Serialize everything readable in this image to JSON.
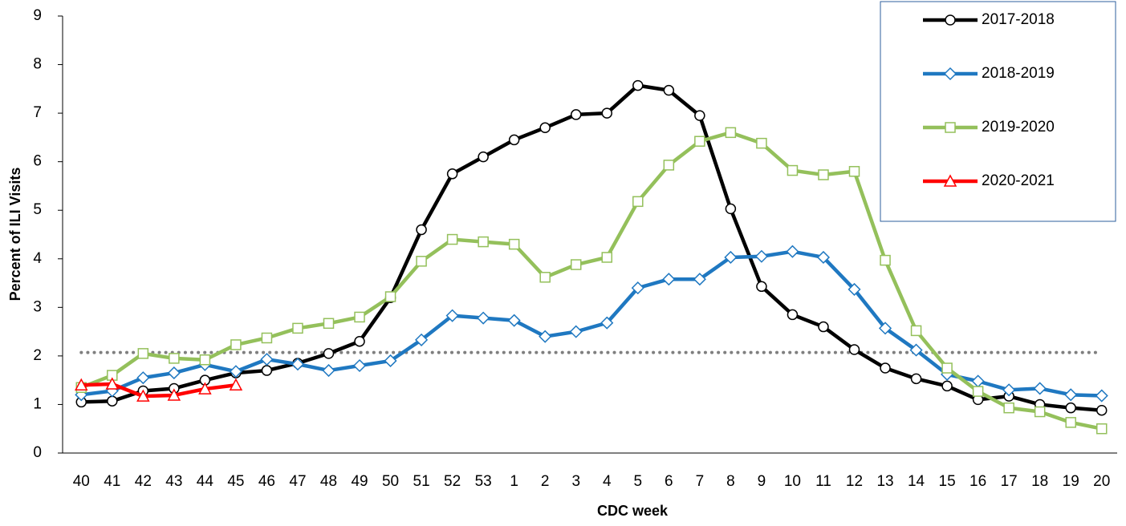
{
  "chart_data": {
    "type": "line",
    "x_label": "CDC week",
    "y_label": "Percent of ILI Visits",
    "categories": [
      "40",
      "41",
      "42",
      "43",
      "44",
      "45",
      "46",
      "47",
      "48",
      "49",
      "50",
      "51",
      "52",
      "53",
      "1",
      "2",
      "3",
      "4",
      "5",
      "6",
      "7",
      "8",
      "9",
      "10",
      "11",
      "12",
      "13",
      "14",
      "15",
      "16",
      "17",
      "18",
      "19",
      "20"
    ],
    "ylim": [
      0,
      9
    ],
    "yticks": [
      0,
      1,
      2,
      3,
      4,
      5,
      6,
      7,
      8,
      9
    ],
    "baseline": 2.07,
    "baseline_color": "#7f7f7f",
    "legend_position": "upper right",
    "series": [
      {
        "name": "2017-2018",
        "color": "#000000",
        "marker": "circle",
        "values": [
          1.05,
          1.07,
          1.28,
          1.33,
          1.5,
          1.65,
          1.7,
          1.85,
          2.05,
          2.3,
          3.2,
          4.6,
          5.75,
          6.1,
          6.45,
          6.7,
          6.97,
          7.0,
          7.57,
          7.47,
          6.95,
          5.03,
          3.43,
          2.85,
          2.6,
          2.13,
          1.75,
          1.53,
          1.38,
          1.1,
          1.17,
          1.0,
          0.93,
          0.88
        ]
      },
      {
        "name": "2018-2019",
        "color": "#1f78c1",
        "marker": "diamond",
        "values": [
          1.2,
          1.28,
          1.55,
          1.65,
          1.82,
          1.68,
          1.93,
          1.83,
          1.7,
          1.8,
          1.9,
          2.33,
          2.83,
          2.78,
          2.73,
          2.4,
          2.5,
          2.68,
          3.4,
          3.58,
          3.58,
          4.03,
          4.05,
          4.15,
          4.03,
          3.37,
          2.57,
          2.12,
          1.62,
          1.48,
          1.3,
          1.33,
          1.2,
          1.18
        ]
      },
      {
        "name": "2019-2020",
        "color": "#94c05b",
        "marker": "square",
        "values": [
          1.35,
          1.6,
          2.05,
          1.95,
          1.92,
          2.23,
          2.37,
          2.57,
          2.67,
          2.8,
          3.22,
          3.95,
          4.4,
          4.35,
          4.3,
          3.62,
          3.88,
          4.03,
          5.18,
          5.93,
          6.42,
          6.6,
          6.38,
          5.82,
          5.73,
          5.8,
          3.97,
          2.52,
          1.75,
          1.27,
          0.93,
          0.85,
          0.63,
          0.5
        ]
      },
      {
        "name": "2020-2021",
        "color": "#ff0000",
        "marker": "triangle",
        "values": [
          1.4,
          1.42,
          1.17,
          1.19,
          1.32,
          1.4,
          null,
          null,
          null,
          null,
          null,
          null,
          null,
          null,
          null,
          null,
          null,
          null,
          null,
          null,
          null,
          null,
          null,
          null,
          null,
          null,
          null,
          null,
          null,
          null,
          null,
          null,
          null,
          null
        ]
      }
    ]
  }
}
